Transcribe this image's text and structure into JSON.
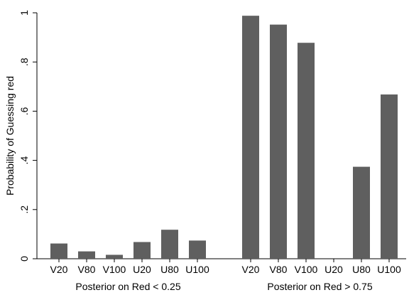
{
  "chart_data": {
    "type": "bar",
    "title": "",
    "ylabel": "Probability of Guessing red",
    "ylim": [
      0,
      1
    ],
    "yticks": [
      {
        "value": 0,
        "label": "0"
      },
      {
        "value": 0.2,
        "label": ".2"
      },
      {
        "value": 0.4,
        "label": ".4"
      },
      {
        "value": 0.6,
        "label": ".6"
      },
      {
        "value": 0.8,
        "label": ".8"
      },
      {
        "value": 1,
        "label": "1"
      }
    ],
    "bar_color": "#5f5f5f",
    "groups": [
      {
        "label": "Posterior on Red < 0.25",
        "categories": [
          "V20",
          "V80",
          "V100",
          "U20",
          "U80",
          "U100"
        ],
        "values": [
          0.062,
          0.03,
          0.016,
          0.068,
          0.118,
          0.074
        ]
      },
      {
        "label": "Posterior on Red > 0.75",
        "categories": [
          "V20",
          "V80",
          "V100",
          "U20",
          "U80",
          "U100"
        ],
        "values": [
          0.988,
          0.952,
          0.878,
          0.0,
          0.374,
          0.668
        ]
      }
    ]
  }
}
